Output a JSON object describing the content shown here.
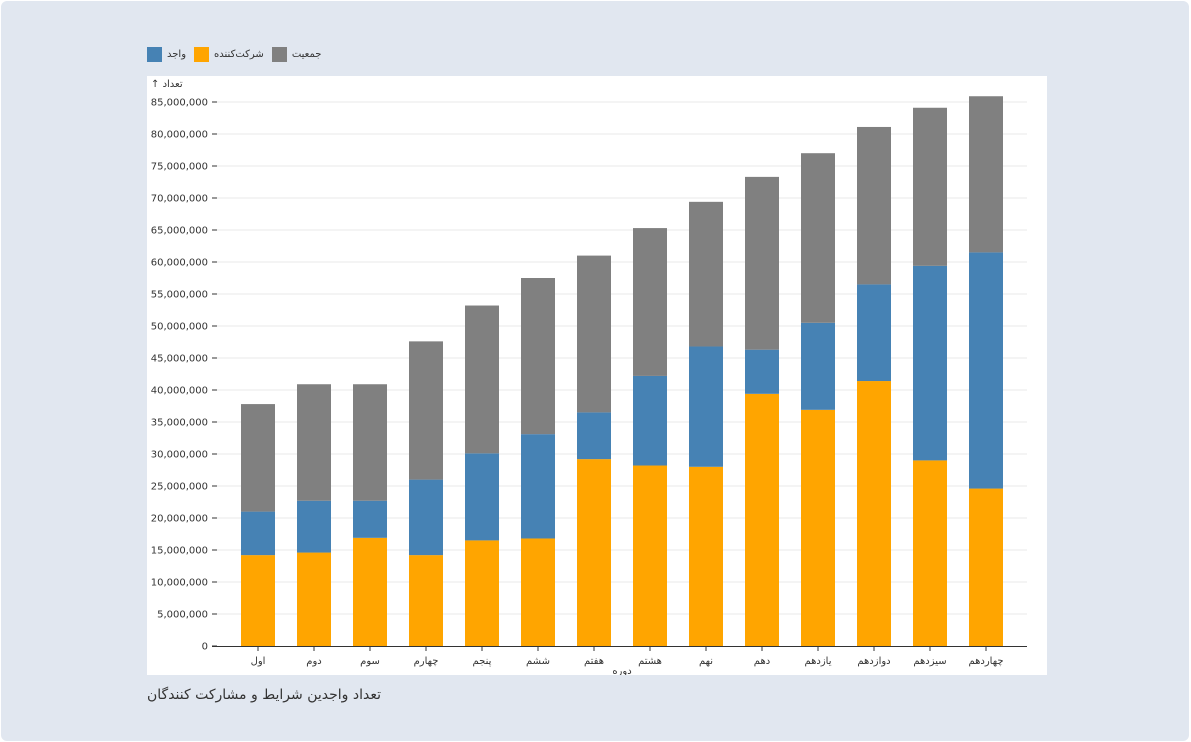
{
  "caption": "تعداد واجدین شرایط و مشارکت کنندگان",
  "legend": [
    {
      "label": "واجد",
      "color": "#4682b4"
    },
    {
      "label": "شرکت‌کننده",
      "color": "#ffa500"
    },
    {
      "label": "جمعیت",
      "color": "#808080"
    }
  ],
  "chart_data": {
    "type": "bar",
    "stacked": true,
    "title": "تعداد واجدین شرایط و مشارکت کنندگان",
    "xlabel": "دوره",
    "ylabel": "↑ تعداد",
    "ylim": [
      0,
      86000000
    ],
    "yticks": [
      0,
      5000000,
      10000000,
      15000000,
      20000000,
      25000000,
      30000000,
      35000000,
      40000000,
      45000000,
      50000000,
      55000000,
      60000000,
      65000000,
      70000000,
      75000000,
      80000000,
      85000000
    ],
    "ytick_labels": [
      "0",
      "5,000,000",
      "10,000,000",
      "15,000,000",
      "20,000,000",
      "25,000,000",
      "30,000,000",
      "35,000,000",
      "40,000,000",
      "45,000,000",
      "50,000,000",
      "55,000,000",
      "60,000,000",
      "65,000,000",
      "70,000,000",
      "75,000,000",
      "80,000,000",
      "85,000,000"
    ],
    "grid": true,
    "legend_position": "top-left",
    "categories": [
      "اول",
      "دوم",
      "سوم",
      "چهارم",
      "پنجم",
      "ششم",
      "هفتم",
      "هشتم",
      "نهم",
      "دهم",
      "یازدهم",
      "دوازدهم",
      "سیزدهم",
      "چهاردهم"
    ],
    "series": [
      {
        "name": "شرکت‌کننده",
        "color": "#ffa500",
        "values": [
          14200000,
          14600000,
          16900000,
          14200000,
          16500000,
          16800000,
          29200000,
          28200000,
          28000000,
          39400000,
          36900000,
          41400000,
          29000000,
          24600000
        ]
      },
      {
        "name": "واجد",
        "color": "#4682b4",
        "values": [
          6800000,
          8100000,
          5800000,
          11800000,
          13600000,
          16300000,
          7300000,
          14000000,
          18800000,
          6900000,
          13600000,
          15100000,
          30400000,
          36900000
        ]
      },
      {
        "name": "جمعیت",
        "color": "#808080",
        "values": [
          16800000,
          18200000,
          18200000,
          21600000,
          23100000,
          24400000,
          24500000,
          23100000,
          22600000,
          27000000,
          26500000,
          24600000,
          24700000,
          24400000
        ]
      }
    ]
  }
}
